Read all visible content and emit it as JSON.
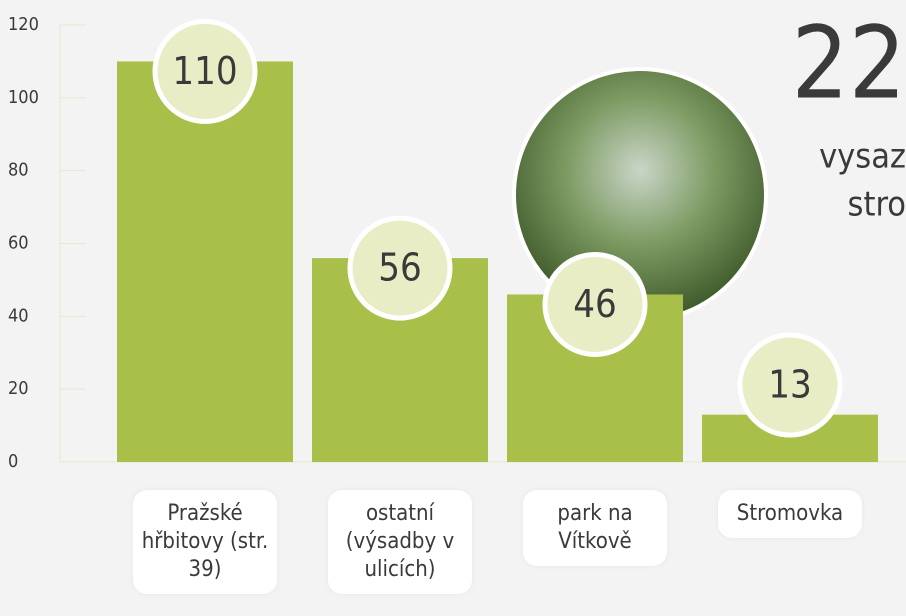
{
  "chart_data": {
    "type": "bar",
    "categories": [
      "Pražské hřbitovy (str. 39)",
      "ostatní (výsadby v ulicích)",
      "park na Vítkově",
      "Stromovka"
    ],
    "values": [
      110,
      56,
      46,
      13
    ],
    "color": "#a8c04a",
    "ylim": [
      0,
      120
    ],
    "yticks": [
      0,
      20,
      40,
      60,
      80,
      100,
      120
    ],
    "headline": {
      "number": "22",
      "line1": "vysaz",
      "line2": "stro"
    }
  }
}
